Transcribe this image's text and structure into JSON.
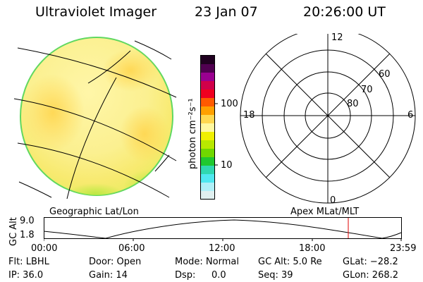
{
  "header": {
    "title": "Ultraviolet Imager",
    "date": "23 Jan 07",
    "time": "20:26:00 UT"
  },
  "geo_panel": {
    "label": "Geographic Lat/Lon"
  },
  "colorbar": {
    "unit_label": "photon cm⁻²s⁻¹",
    "ticks": [
      "100",
      "10"
    ],
    "colors": [
      "#200020",
      "#500050",
      "#9a0090",
      "#d0004a",
      "#f00020",
      "#ff5a00",
      "#ffa000",
      "#ffd850",
      "#fff8a0",
      "#f0f000",
      "#b8e800",
      "#70d800",
      "#20c830",
      "#30d8b0",
      "#50e8f0",
      "#b0f0f8",
      "#e0f0f0"
    ]
  },
  "polar_panel": {
    "label": "Apex MLat/MLT",
    "mlt_labels": {
      "top": "12",
      "bottom": "0",
      "left": "18",
      "right": "6"
    },
    "lat_labels": [
      "60",
      "70",
      "80"
    ]
  },
  "altitude_plot": {
    "ylabel": "GC Alt",
    "y_ticks": [
      "9.0",
      "1.8"
    ],
    "x_ticks": [
      "00:00",
      "06:00",
      "12:00",
      "18:00",
      "23:59"
    ],
    "marker_color": "#e00000"
  },
  "info": {
    "filter": "Flt: LBHL",
    "ip": "IP: 36.0",
    "door": "Door: Open",
    "gain": "Gain: 14",
    "mode": "Mode: Normal",
    "dsp_label": "Dsp:",
    "dsp_value": "0.0",
    "gc_alt": "GC Alt: 5.0 Re",
    "seq": "Seq: 39",
    "glat": "GLat: −28.2",
    "glon": "GLon: 268.2"
  }
}
